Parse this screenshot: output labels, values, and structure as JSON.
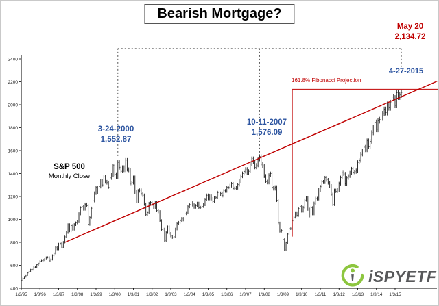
{
  "title": "Bearish Mortgage?",
  "annotations": {
    "may20": {
      "line1": "May 20",
      "line2": "2,134.72"
    },
    "date_2015": "4-27-2015",
    "fibonacci_label": "161.8% Fibonacci Projection",
    "peak_2000": {
      "line1": "3-24-2000",
      "line2": "1,552.87"
    },
    "peak_2007": {
      "line1": "10-11-2007",
      "line2": "1,576.09"
    },
    "series": {
      "line1": "S&P 500",
      "line2": "Monthly Close"
    }
  },
  "logo": {
    "text": "iSPYETF"
  },
  "colors": {
    "red": "#C00000",
    "blue": "#2C54A0",
    "bar": "#1A1A1A",
    "dotted": "#555555",
    "green": "#8DC63F",
    "logo_gray": "#58595B"
  },
  "chart_data": {
    "type": "bar",
    "subtype": "monthly-close-price-bars",
    "title": "Bearish Mortgage?",
    "series_name": "S&P 500 Monthly Close",
    "x_tick_labels": [
      "1/3/95",
      "1/3/96",
      "1/3/97",
      "1/3/98",
      "1/3/99",
      "1/3/00",
      "1/3/01",
      "1/3/02",
      "1/3/03",
      "1/3/04",
      "1/3/05",
      "1/3/06",
      "1/3/07",
      "1/3/08",
      "1/3/09",
      "1/3/10",
      "1/3/11",
      "1/3/12",
      "1/3/13",
      "1/3/14",
      "1/3/15"
    ],
    "months_per_tick": 12,
    "x_start_month": "1/1995",
    "x_end_month": "5/2015",
    "ylim": [
      400,
      2400
    ],
    "ytick_step": 200,
    "grid": false,
    "legend": "none",
    "monthly_close": [
      470,
      487,
      500,
      514,
      533,
      544,
      562,
      561,
      584,
      581,
      605,
      615,
      636,
      640,
      645,
      654,
      669,
      670,
      639,
      651,
      687,
      705,
      757,
      740,
      786,
      790,
      757,
      801,
      848,
      885,
      954,
      899,
      947,
      914,
      955,
      970,
      980,
      1049,
      1101,
      1111,
      1090,
      1133,
      1120,
      957,
      1017,
      1098,
      1163,
      1229,
      1279,
      1238,
      1286,
      1335,
      1301,
      1372,
      1328,
      1320,
      1282,
      1362,
      1388,
      1469,
      1394,
      1366,
      1498,
      1452,
      1420,
      1454,
      1430,
      1517,
      1436,
      1429,
      1314,
      1320,
      1366,
      1239,
      1160,
      1249,
      1255,
      1224,
      1211,
      1133,
      1040,
      1059,
      1139,
      1148,
      1130,
      1106,
      1147,
      1076,
      1067,
      989,
      911,
      916,
      815,
      885,
      936,
      879,
      855,
      841,
      848,
      916,
      963,
      974,
      990,
      1008,
      995,
      1050,
      1058,
      1111,
      1131,
      1144,
      1126,
      1107,
      1120,
      1140,
      1101,
      1104,
      1114,
      1130,
      1173,
      1211,
      1181,
      1203,
      1180,
      1156,
      1191,
      1191,
      1234,
      1220,
      1228,
      1207,
      1249,
      1248,
      1280,
      1280,
      1294,
      1310,
      1270,
      1270,
      1276,
      1303,
      1335,
      1377,
      1400,
      1418,
      1438,
      1406,
      1420,
      1482,
      1530,
      1503,
      1455,
      1473,
      1526,
      1549,
      1481,
      1468,
      1378,
      1330,
      1322,
      1385,
      1400,
      1280,
      1267,
      1282,
      1166,
      968,
      896,
      903,
      825,
      735,
      797,
      872,
      919,
      919,
      987,
      1020,
      1057,
      1036,
      1095,
      1115,
      1073,
      1104,
      1169,
      1186,
      1089,
      1030,
      1101,
      1049,
      1141,
      1183,
      1180,
      1257,
      1286,
      1327,
      1325,
      1363,
      1345,
      1320,
      1292,
      1218,
      1131,
      1253,
      1246,
      1257,
      1312,
      1365,
      1408,
      1397,
      1310,
      1362,
      1379,
      1406,
      1440,
      1412,
      1416,
      1426,
      1498,
      1514,
      1569,
      1597,
      1630,
      1606,
      1685,
      1632,
      1681,
      1756,
      1805,
      1848,
      1782,
      1859,
      1872,
      1883,
      1923,
      1960,
      1930,
      2003,
      1972,
      2018,
      2067,
      2058,
      1994,
      2104,
      2067,
      2085,
      2107
    ],
    "trendline": {
      "start_month": 28,
      "start_value": 800,
      "end_month": 267,
      "end_value": 2205
    },
    "fibonacci": {
      "label": "161.8% Fibonacci Projection",
      "level": 2134.72,
      "from_month": 174,
      "vline_month": 174,
      "vline_bottom": 850
    },
    "projection_dotted": {
      "level": 2490,
      "from_month": 62,
      "to_month": 244,
      "verticals": [
        {
          "month": 62,
          "bottom": 1552
        },
        {
          "month": 153,
          "bottom": 1570
        },
        {
          "month": 244,
          "bottom": 2330
        }
      ]
    },
    "key_points": [
      {
        "date": "3-24-2000",
        "value": 1552.87
      },
      {
        "date": "10-11-2007",
        "value": 1576.09
      },
      {
        "date": "4-27-2015"
      },
      {
        "date": "May 20",
        "value": 2134.72
      }
    ]
  }
}
